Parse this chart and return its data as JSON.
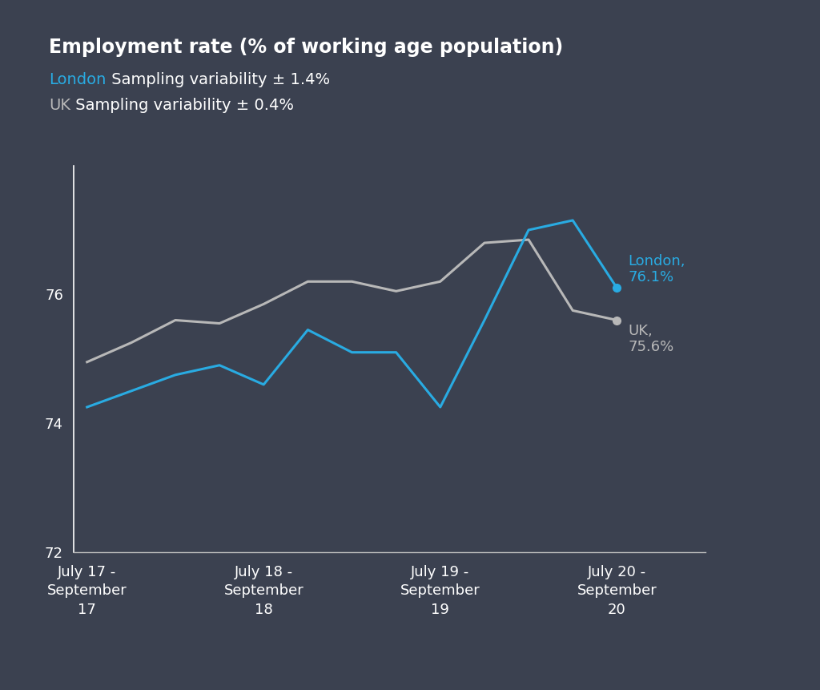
{
  "background_color": "#3b4150",
  "title_line1": "Employment rate (% of working age population)",
  "london_label": "London",
  "uk_label": "UK",
  "subtitle_london": " Sampling variability ± 1.4%",
  "subtitle_uk": " Sampling variability ± 0.4%",
  "london_color": "#29abe2",
  "uk_color": "#b8b8b8",
  "text_color": "#ffffff",
  "xlabels": [
    "July 17 -\nSeptember\n17",
    "July 18 -\nSeptember\n18",
    "July 19 -\nSeptember\n19",
    "July 20 -\nSeptember\n20"
  ],
  "xtick_positions": [
    0,
    4,
    8,
    12
  ],
  "ylim": [
    72,
    78
  ],
  "yticks": [
    72,
    74,
    76
  ],
  "x": [
    0,
    1,
    2,
    3,
    4,
    5,
    6,
    7,
    8,
    9,
    10,
    11,
    12
  ],
  "london": [
    74.25,
    74.5,
    74.75,
    74.9,
    74.6,
    75.45,
    75.1,
    75.1,
    74.25,
    75.6,
    77.0,
    77.15,
    76.1
  ],
  "uk": [
    74.95,
    75.25,
    75.6,
    75.55,
    75.85,
    76.2,
    76.2,
    76.05,
    76.2,
    76.8,
    76.85,
    75.75,
    75.6
  ],
  "london_final_label": "London,\n76.1%",
  "uk_final_label": "UK,\n75.6%",
  "title_fontsize": 17,
  "subtitle_fontsize": 14,
  "tick_fontsize": 13,
  "annotation_fontsize": 13,
  "line_width": 2.2
}
